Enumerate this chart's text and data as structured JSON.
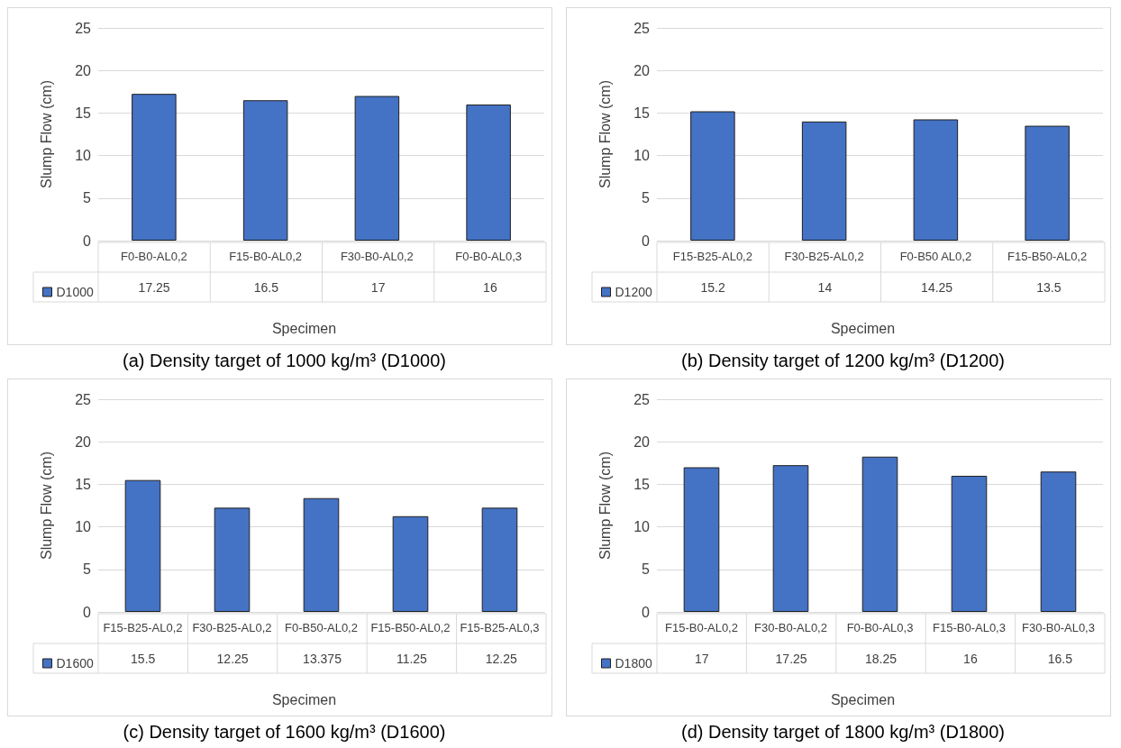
{
  "chart_data": [
    {
      "type": "bar",
      "title": "(a) Density target of 1000 kg/m³ (D1000)",
      "xlabel": "Specimen",
      "ylabel": "Slump Flow (cm)",
      "categories": [
        "F0-B0-AL0,2",
        "F15-B0-AL0,2",
        "F30-B0-AL0,2",
        "F0-B0-AL0,3"
      ],
      "series": [
        {
          "name": "D1000",
          "color": "#4472c4",
          "values": [
            17.25,
            16.5,
            17,
            16
          ]
        }
      ],
      "ylim": [
        0,
        25
      ],
      "yticks": [
        0,
        5,
        10,
        15,
        20,
        25
      ],
      "grid": "y",
      "legend": "bottom left",
      "data_labels": true
    },
    {
      "type": "bar",
      "title": "(b) Density target of 1200 kg/m³ (D1200)",
      "xlabel": "Specimen",
      "ylabel": "Slump Flow (cm)",
      "categories": [
        "F15-B25-AL0,2",
        "F30-B25-AL0,2",
        "F0-B50 AL0,2",
        "F15-B50-AL0,2"
      ],
      "series": [
        {
          "name": "D1200",
          "color": "#4472c4",
          "values": [
            15.2,
            14,
            14.25,
            13.5
          ]
        }
      ],
      "ylim": [
        0,
        25
      ],
      "yticks": [
        0,
        5,
        10,
        15,
        20,
        25
      ],
      "grid": "y",
      "legend": "bottom left",
      "data_labels": true
    },
    {
      "type": "bar",
      "title": "(c) Density target of 1600 kg/m³ (D1600)",
      "xlabel": "Specimen",
      "ylabel": "Slump Flow (cm)",
      "categories": [
        "F15-B25-AL0,2",
        "F30-B25-AL0,2",
        "F0-B50-AL0,2",
        "F15-B50-AL0,2",
        "F15-B25-AL0,3"
      ],
      "series": [
        {
          "name": "D1600",
          "color": "#4472c4",
          "values": [
            15.5,
            12.25,
            13.375,
            11.25,
            12.25
          ]
        }
      ],
      "ylim": [
        0,
        25
      ],
      "yticks": [
        0,
        5,
        10,
        15,
        20,
        25
      ],
      "grid": "y",
      "legend": "bottom left",
      "data_labels": true
    },
    {
      "type": "bar",
      "title": "(d) Density target of 1800 kg/m³ (D1800)",
      "xlabel": "Specimen",
      "ylabel": "Slump Flow (cm)",
      "categories": [
        "F15-B0-AL0,2",
        "F30-B0-AL0,2",
        "F0-B0-AL0,3",
        "F15-B0-AL0,3",
        "F30-B0-AL0,3"
      ],
      "series": [
        {
          "name": "D1800",
          "color": "#4472c4",
          "values": [
            17,
            17.25,
            18.25,
            16,
            16.5
          ]
        }
      ],
      "ylim": [
        0,
        25
      ],
      "yticks": [
        0,
        5,
        10,
        15,
        20,
        25
      ],
      "grid": "y",
      "legend": "bottom left",
      "data_labels": true
    }
  ]
}
